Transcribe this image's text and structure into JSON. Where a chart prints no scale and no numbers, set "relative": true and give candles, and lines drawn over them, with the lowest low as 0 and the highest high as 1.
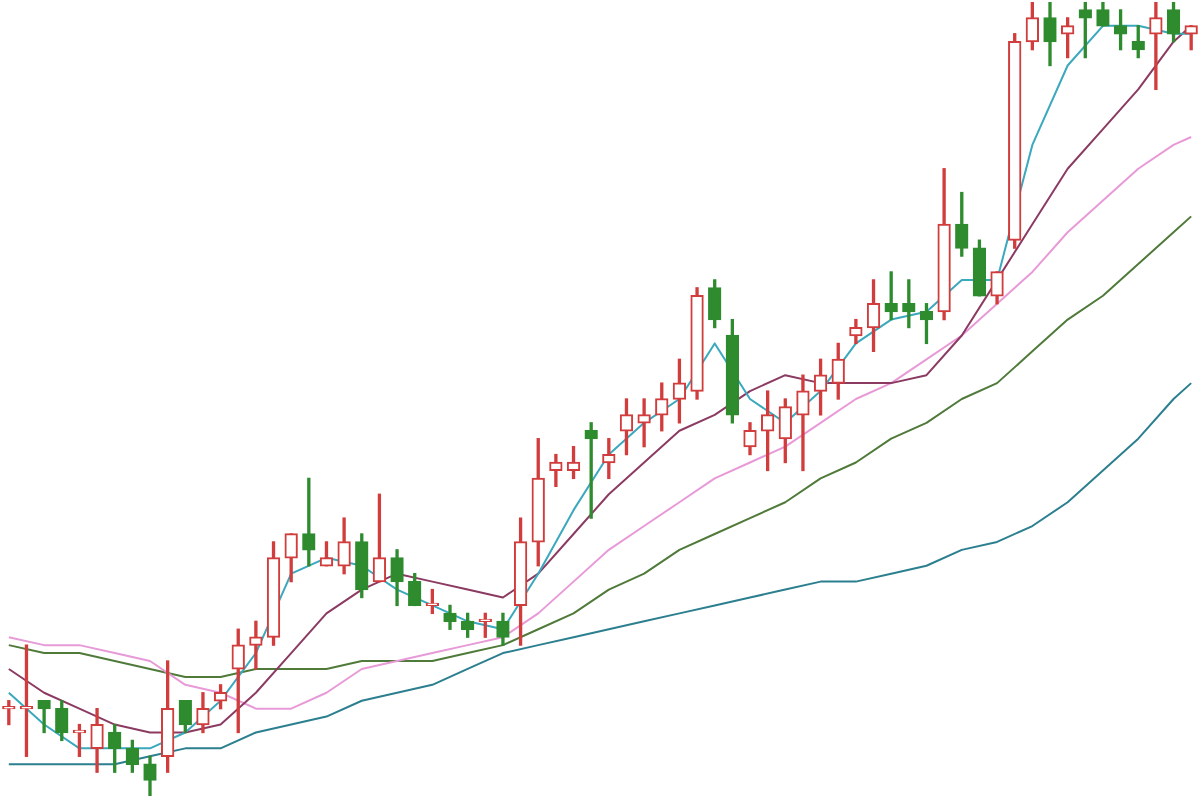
{
  "chart_data": {
    "type": "candlestick",
    "relative": true,
    "categories": [
      null,
      null,
      null,
      null,
      null,
      null,
      null,
      null,
      null,
      null,
      null,
      null,
      null,
      null,
      null,
      null,
      null,
      null,
      null,
      null,
      null,
      null,
      null,
      null,
      null,
      null,
      null,
      null,
      null,
      null,
      null,
      null,
      null,
      null,
      null,
      null,
      null,
      null,
      null,
      null,
      null,
      null,
      null,
      null,
      null,
      null,
      null,
      null,
      null,
      null,
      null,
      null,
      null,
      null,
      null,
      null,
      null,
      null,
      null,
      null,
      null,
      null,
      null,
      null,
      null,
      null,
      null,
      null
    ],
    "ohlc": [
      [
        0.11,
        0.12,
        0.09,
        0.11
      ],
      [
        0.11,
        0.19,
        0.05,
        0.11
      ],
      [
        0.12,
        0.12,
        0.08,
        0.11
      ],
      [
        0.11,
        0.12,
        0.07,
        0.08
      ],
      [
        0.08,
        0.09,
        0.05,
        0.08
      ],
      [
        0.06,
        0.11,
        0.03,
        0.09
      ],
      [
        0.08,
        0.09,
        0.03,
        0.06
      ],
      [
        0.06,
        0.07,
        0.03,
        0.04
      ],
      [
        0.04,
        0.05,
        0,
        0.02
      ],
      [
        0.05,
        0.17,
        0.03,
        0.11
      ],
      [
        0.12,
        0.12,
        0.08,
        0.09
      ],
      [
        0.09,
        0.13,
        0.08,
        0.11
      ],
      [
        0.12,
        0.14,
        0.11,
        0.13
      ],
      [
        0.16,
        0.21,
        0.08,
        0.19
      ],
      [
        0.19,
        0.22,
        0.16,
        0.2
      ],
      [
        0.2,
        0.32,
        0.19,
        0.3
      ],
      [
        0.3,
        0.33,
        0.27,
        0.33
      ],
      [
        0.33,
        0.4,
        0.29,
        0.31
      ],
      [
        0.29,
        0.32,
        0.29,
        0.3
      ],
      [
        0.29,
        0.35,
        0.28,
        0.32
      ],
      [
        0.32,
        0.33,
        0.25,
        0.26
      ],
      [
        0.27,
        0.38,
        0.27,
        0.3
      ],
      [
        0.3,
        0.31,
        0.24,
        0.27
      ],
      [
        0.27,
        0.28,
        0.24,
        0.24
      ],
      [
        0.24,
        0.26,
        0.23,
        0.24
      ],
      [
        0.23,
        0.24,
        0.21,
        0.22
      ],
      [
        0.22,
        0.23,
        0.2,
        0.21
      ],
      [
        0.22,
        0.23,
        0.2,
        0.22
      ],
      [
        0.22,
        0.23,
        0.19,
        0.2
      ],
      [
        0.24,
        0.35,
        0.19,
        0.32
      ],
      [
        0.32,
        0.45,
        0.29,
        0.4
      ],
      [
        0.41,
        0.43,
        0.39,
        0.42
      ],
      [
        0.41,
        0.44,
        0.4,
        0.42
      ],
      [
        0.46,
        0.47,
        0.35,
        0.45
      ],
      [
        0.42,
        0.45,
        0.4,
        0.43
      ],
      [
        0.46,
        0.5,
        0.43,
        0.48
      ],
      [
        0.47,
        0.5,
        0.44,
        0.48
      ],
      [
        0.48,
        0.52,
        0.46,
        0.5
      ],
      [
        0.5,
        0.55,
        0.47,
        0.52
      ],
      [
        0.51,
        0.64,
        0.5,
        0.63
      ],
      [
        0.64,
        0.65,
        0.59,
        0.6
      ],
      [
        0.58,
        0.6,
        0.47,
        0.48
      ],
      [
        0.44,
        0.47,
        0.43,
        0.46
      ],
      [
        0.46,
        0.51,
        0.41,
        0.48
      ],
      [
        0.45,
        0.5,
        0.42,
        0.49
      ],
      [
        0.48,
        0.53,
        0.41,
        0.51
      ],
      [
        0.51,
        0.55,
        0.48,
        0.53
      ],
      [
        0.52,
        0.57,
        0.5,
        0.55
      ],
      [
        0.58,
        0.6,
        0.57,
        0.59
      ],
      [
        0.59,
        0.65,
        0.56,
        0.62
      ],
      [
        0.62,
        0.66,
        0.6,
        0.61
      ],
      [
        0.62,
        0.65,
        0.59,
        0.61
      ],
      [
        0.61,
        0.62,
        0.57,
        0.6
      ],
      [
        0.61,
        0.79,
        0.6,
        0.72
      ],
      [
        0.72,
        0.76,
        0.68,
        0.69
      ],
      [
        0.69,
        0.7,
        0.63,
        0.63
      ],
      [
        0.63,
        0.66,
        0.62,
        0.66
      ],
      [
        0.7,
        0.96,
        0.69,
        0.95
      ],
      [
        0.95,
        1,
        0.94,
        0.98
      ],
      [
        0.98,
        1,
        0.92,
        0.95
      ],
      [
        0.96,
        0.98,
        0.93,
        0.97
      ],
      [
        0.99,
        1,
        0.93,
        0.98
      ],
      [
        0.99,
        1,
        0.97,
        0.97
      ],
      [
        0.97,
        0.99,
        0.94,
        0.96
      ],
      [
        0.95,
        0.97,
        0.93,
        0.94
      ],
      [
        0.96,
        1,
        0.89,
        0.98
      ],
      [
        0.99,
        1,
        0.95,
        0.96
      ],
      [
        0.96,
        0.97,
        0.94,
        0.97
      ]
    ],
    "colors": [
      "#d13c3c",
      "#d13c3c",
      "#2e8b2e",
      "#2e8b2e",
      "#d13c3c",
      "#d13c3c",
      "#2e8b2e",
      "#2e8b2e",
      "#2e8b2e",
      "#d13c3c",
      "#2e8b2e",
      "#d13c3c",
      "#d13c3c",
      "#d13c3c",
      "#d13c3c",
      "#d13c3c",
      "#d13c3c",
      "#2e8b2e",
      "#d13c3c",
      "#d13c3c",
      "#2e8b2e",
      "#d13c3c",
      "#2e8b2e",
      "#2e8b2e",
      "#d13c3c",
      "#2e8b2e",
      "#2e8b2e",
      "#d13c3c",
      "#2e8b2e",
      "#d13c3c",
      "#d13c3c",
      "#d13c3c",
      "#d13c3c",
      "#2e8b2e",
      "#d13c3c",
      "#d13c3c",
      "#d13c3c",
      "#d13c3c",
      "#d13c3c",
      "#d13c3c",
      "#2e8b2e",
      "#2e8b2e",
      "#d13c3c",
      "#d13c3c",
      "#d13c3c",
      "#d13c3c",
      "#d13c3c",
      "#d13c3c",
      "#d13c3c",
      "#d13c3c",
      "#2e8b2e",
      "#2e8b2e",
      "#2e8b2e",
      "#d13c3c",
      "#2e8b2e",
      "#2e8b2e",
      "#d13c3c",
      "#d13c3c",
      "#d13c3c",
      "#2e8b2e",
      "#d13c3c",
      "#2e8b2e",
      "#2e8b2e",
      "#2e8b2e",
      "#2e8b2e",
      "#d13c3c",
      "#2e8b2e",
      "#d13c3c"
    ],
    "series": [
      {
        "type": "line",
        "color": "#3aa8bd",
        "values": [
          0.13,
          null,
          0.09,
          null,
          0.06,
          null,
          0.06,
          null,
          0.06,
          null,
          0.08,
          null,
          0.12,
          null,
          0.18,
          null,
          0.28,
          null,
          0.3,
          null,
          0.29,
          null,
          0.26,
          null,
          0.24,
          null,
          0.22,
          null,
          0.21,
          null,
          0.28,
          null,
          0.36,
          null,
          0.43,
          null,
          0.47,
          null,
          0.5,
          null,
          0.57,
          null,
          0.5,
          null,
          0.47,
          null,
          0.51,
          null,
          0.57,
          null,
          0.6,
          null,
          0.61,
          null,
          0.65,
          null,
          0.65,
          null,
          0.82,
          null,
          0.92,
          null,
          0.97,
          null,
          0.97,
          null,
          0.96,
          0.96
        ]
      },
      {
        "type": "line",
        "color": "#8b3a62",
        "values": [
          0.16,
          null,
          0.13,
          null,
          0.11,
          null,
          0.09,
          null,
          0.08,
          null,
          0.08,
          null,
          0.09,
          null,
          0.13,
          null,
          0.18,
          null,
          0.23,
          null,
          0.26,
          null,
          0.28,
          null,
          0.27,
          null,
          0.26,
          null,
          0.25,
          null,
          0.28,
          null,
          0.33,
          null,
          0.38,
          null,
          0.42,
          null,
          0.46,
          null,
          0.48,
          null,
          0.51,
          null,
          0.53,
          null,
          0.52,
          null,
          0.52,
          null,
          0.52,
          null,
          0.53,
          null,
          0.58,
          null,
          0.65,
          null,
          0.72,
          null,
          0.79,
          null,
          0.84,
          null,
          0.89,
          null,
          0.95,
          0.97
        ]
      },
      {
        "type": "line",
        "color": "#e89ad8",
        "values": [
          0.2,
          null,
          0.19,
          null,
          0.19,
          null,
          0.18,
          null,
          0.17,
          null,
          0.14,
          null,
          0.13,
          null,
          0.11,
          null,
          0.11,
          null,
          0.13,
          null,
          0.16,
          null,
          0.17,
          null,
          0.18,
          null,
          0.19,
          null,
          0.2,
          null,
          0.23,
          null,
          0.27,
          null,
          0.31,
          null,
          0.34,
          null,
          0.37,
          null,
          0.4,
          null,
          0.42,
          null,
          0.44,
          null,
          0.47,
          null,
          0.5,
          null,
          0.52,
          null,
          0.55,
          null,
          0.58,
          null,
          0.62,
          null,
          0.66,
          null,
          0.71,
          null,
          0.75,
          null,
          0.79,
          null,
          0.82,
          0.83
        ]
      },
      {
        "type": "line",
        "color": "#4f7a3a",
        "values": [
          0.19,
          null,
          0.18,
          null,
          0.18,
          null,
          0.17,
          null,
          0.16,
          null,
          0.15,
          null,
          0.15,
          null,
          0.16,
          null,
          0.16,
          null,
          0.16,
          null,
          0.17,
          null,
          0.17,
          null,
          0.17,
          null,
          0.18,
          null,
          0.19,
          null,
          0.21,
          null,
          0.23,
          null,
          0.26,
          null,
          0.28,
          null,
          0.31,
          null,
          0.33,
          null,
          0.35,
          null,
          0.37,
          null,
          0.4,
          null,
          0.42,
          null,
          0.45,
          null,
          0.47,
          null,
          0.5,
          null,
          0.52,
          null,
          0.56,
          null,
          0.6,
          null,
          0.63,
          null,
          0.67,
          null,
          0.71,
          0.73
        ]
      },
      {
        "type": "line",
        "color": "#2b7f8f",
        "values": [
          0.04,
          null,
          0.04,
          null,
          0.04,
          null,
          0.04,
          null,
          0.05,
          null,
          0.06,
          null,
          0.06,
          null,
          0.08,
          null,
          0.09,
          null,
          0.1,
          null,
          0.12,
          null,
          0.13,
          null,
          0.14,
          null,
          0.16,
          null,
          0.18,
          null,
          0.19,
          null,
          0.2,
          null,
          0.21,
          null,
          0.22,
          null,
          0.23,
          null,
          0.24,
          null,
          0.25,
          null,
          0.26,
          null,
          0.27,
          null,
          0.27,
          null,
          0.28,
          null,
          0.29,
          null,
          0.31,
          null,
          0.32,
          null,
          0.34,
          null,
          0.37,
          null,
          0.41,
          null,
          0.45,
          null,
          0.5,
          0.52
        ]
      }
    ]
  }
}
